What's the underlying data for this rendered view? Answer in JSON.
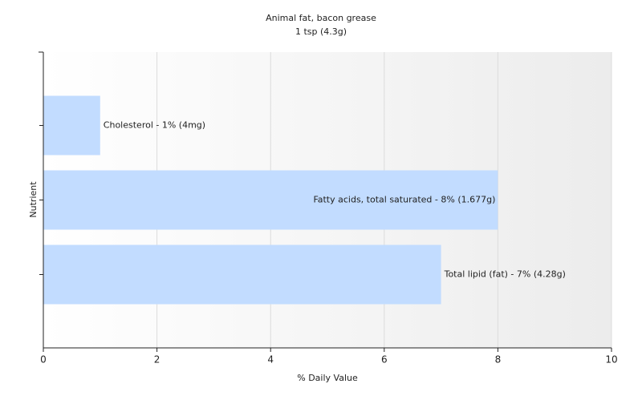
{
  "chart_data": {
    "type": "hbar",
    "title": "Animal fat, bacon grease",
    "subtitle": "1 tsp (4.3g)",
    "x_label": "% Daily Value",
    "y_label": "Nutrient",
    "categories": [
      null,
      null,
      null
    ],
    "values": [
      1,
      8,
      7
    ],
    "value_labels": [
      "Cholesterol - 1% (4mg)",
      "Fatty acids, total saturated - 8% (1.677g)",
      "Total lipid (fat) - 7% (4.28g)"
    ],
    "color": "#c2dcff",
    "xlim": [
      0,
      10
    ],
    "xticks": [
      0,
      2,
      4,
      6,
      8,
      10
    ],
    "grid": true
  }
}
